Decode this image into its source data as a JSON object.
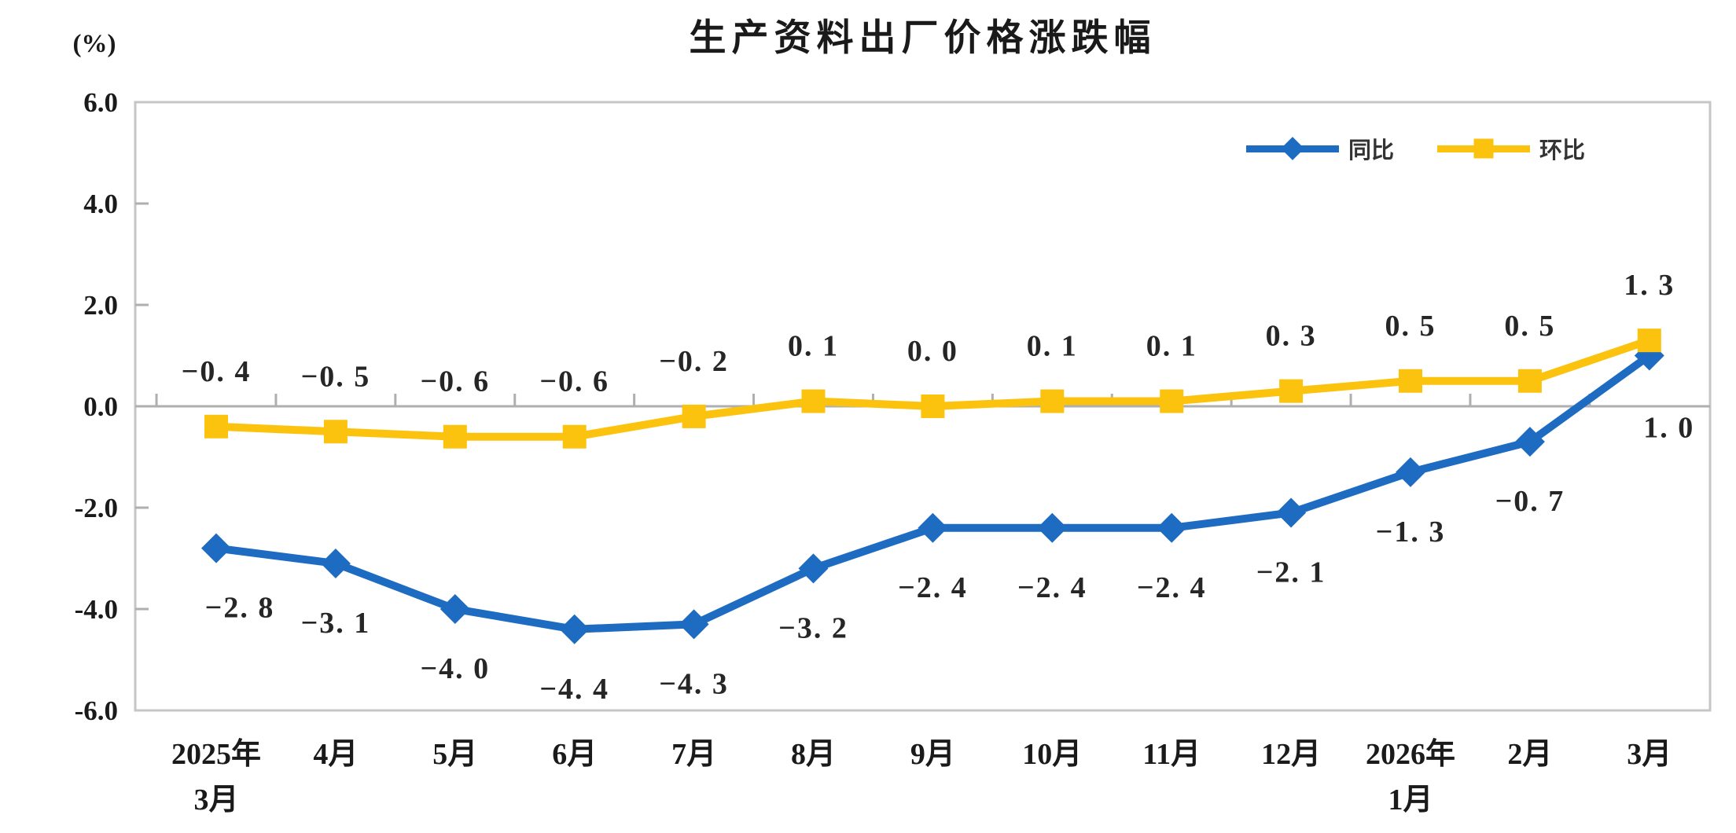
{
  "title": "生产资料出厂价格涨跌幅",
  "unit_label": "(%)",
  "chart_data": {
    "type": "line",
    "title": "生产资料出厂价格涨跌幅",
    "ylabel": "(%)",
    "ylim": [
      -6.0,
      6.0
    ],
    "ytick_step": 2.0,
    "ytick_labels": [
      "6.0",
      "4.0",
      "2.0",
      "0.0",
      "-2.0",
      "-4.0",
      "-6.0"
    ],
    "ytick_values": [
      6,
      4,
      2,
      0,
      -2,
      -4,
      -6
    ],
    "categories": [
      "2025年\n3月",
      "4月",
      "5月",
      "6月",
      "7月",
      "8月",
      "9月",
      "10月",
      "11月",
      "12月",
      "2026年\n1月",
      "2月",
      "3月"
    ],
    "series": [
      {
        "name": "同比",
        "marker": "diamond",
        "color": "#1E6BC2",
        "values": [
          -2.8,
          -3.1,
          -4.0,
          -4.4,
          -4.3,
          -3.2,
          -2.4,
          -2.4,
          -2.4,
          -2.1,
          -1.3,
          -0.7,
          1.0
        ],
        "labels": [
          "−2. 8",
          "−3. 1",
          "−4. 0",
          "−4. 4",
          "−4. 3",
          "−3. 2",
          "−2. 4",
          "−2. 4",
          "−2. 4",
          "−2. 1",
          "−1. 3",
          "−0. 7",
          "1. 0"
        ]
      },
      {
        "name": "环比",
        "marker": "square",
        "color": "#FCC30E",
        "values": [
          -0.4,
          -0.5,
          -0.6,
          -0.6,
          -0.2,
          0.1,
          0.0,
          0.1,
          0.1,
          0.3,
          0.5,
          0.5,
          1.3
        ],
        "labels": [
          "−0. 4",
          "−0. 5",
          "−0. 6",
          "−0. 6",
          "−0. 2",
          "0. 1",
          "0. 0",
          "0. 1",
          "0. 1",
          "0. 3",
          "0. 5",
          "0. 5",
          "1. 3"
        ]
      }
    ],
    "legend_position": "top-right",
    "grid": false,
    "colors": {
      "border": "#C6C6C6",
      "zero_line": "#AFAFAF",
      "tick": "#AFAFAF",
      "axis_text": "#1a1a1a",
      "data_label_text": "#262626",
      "background": "#ffffff"
    }
  }
}
